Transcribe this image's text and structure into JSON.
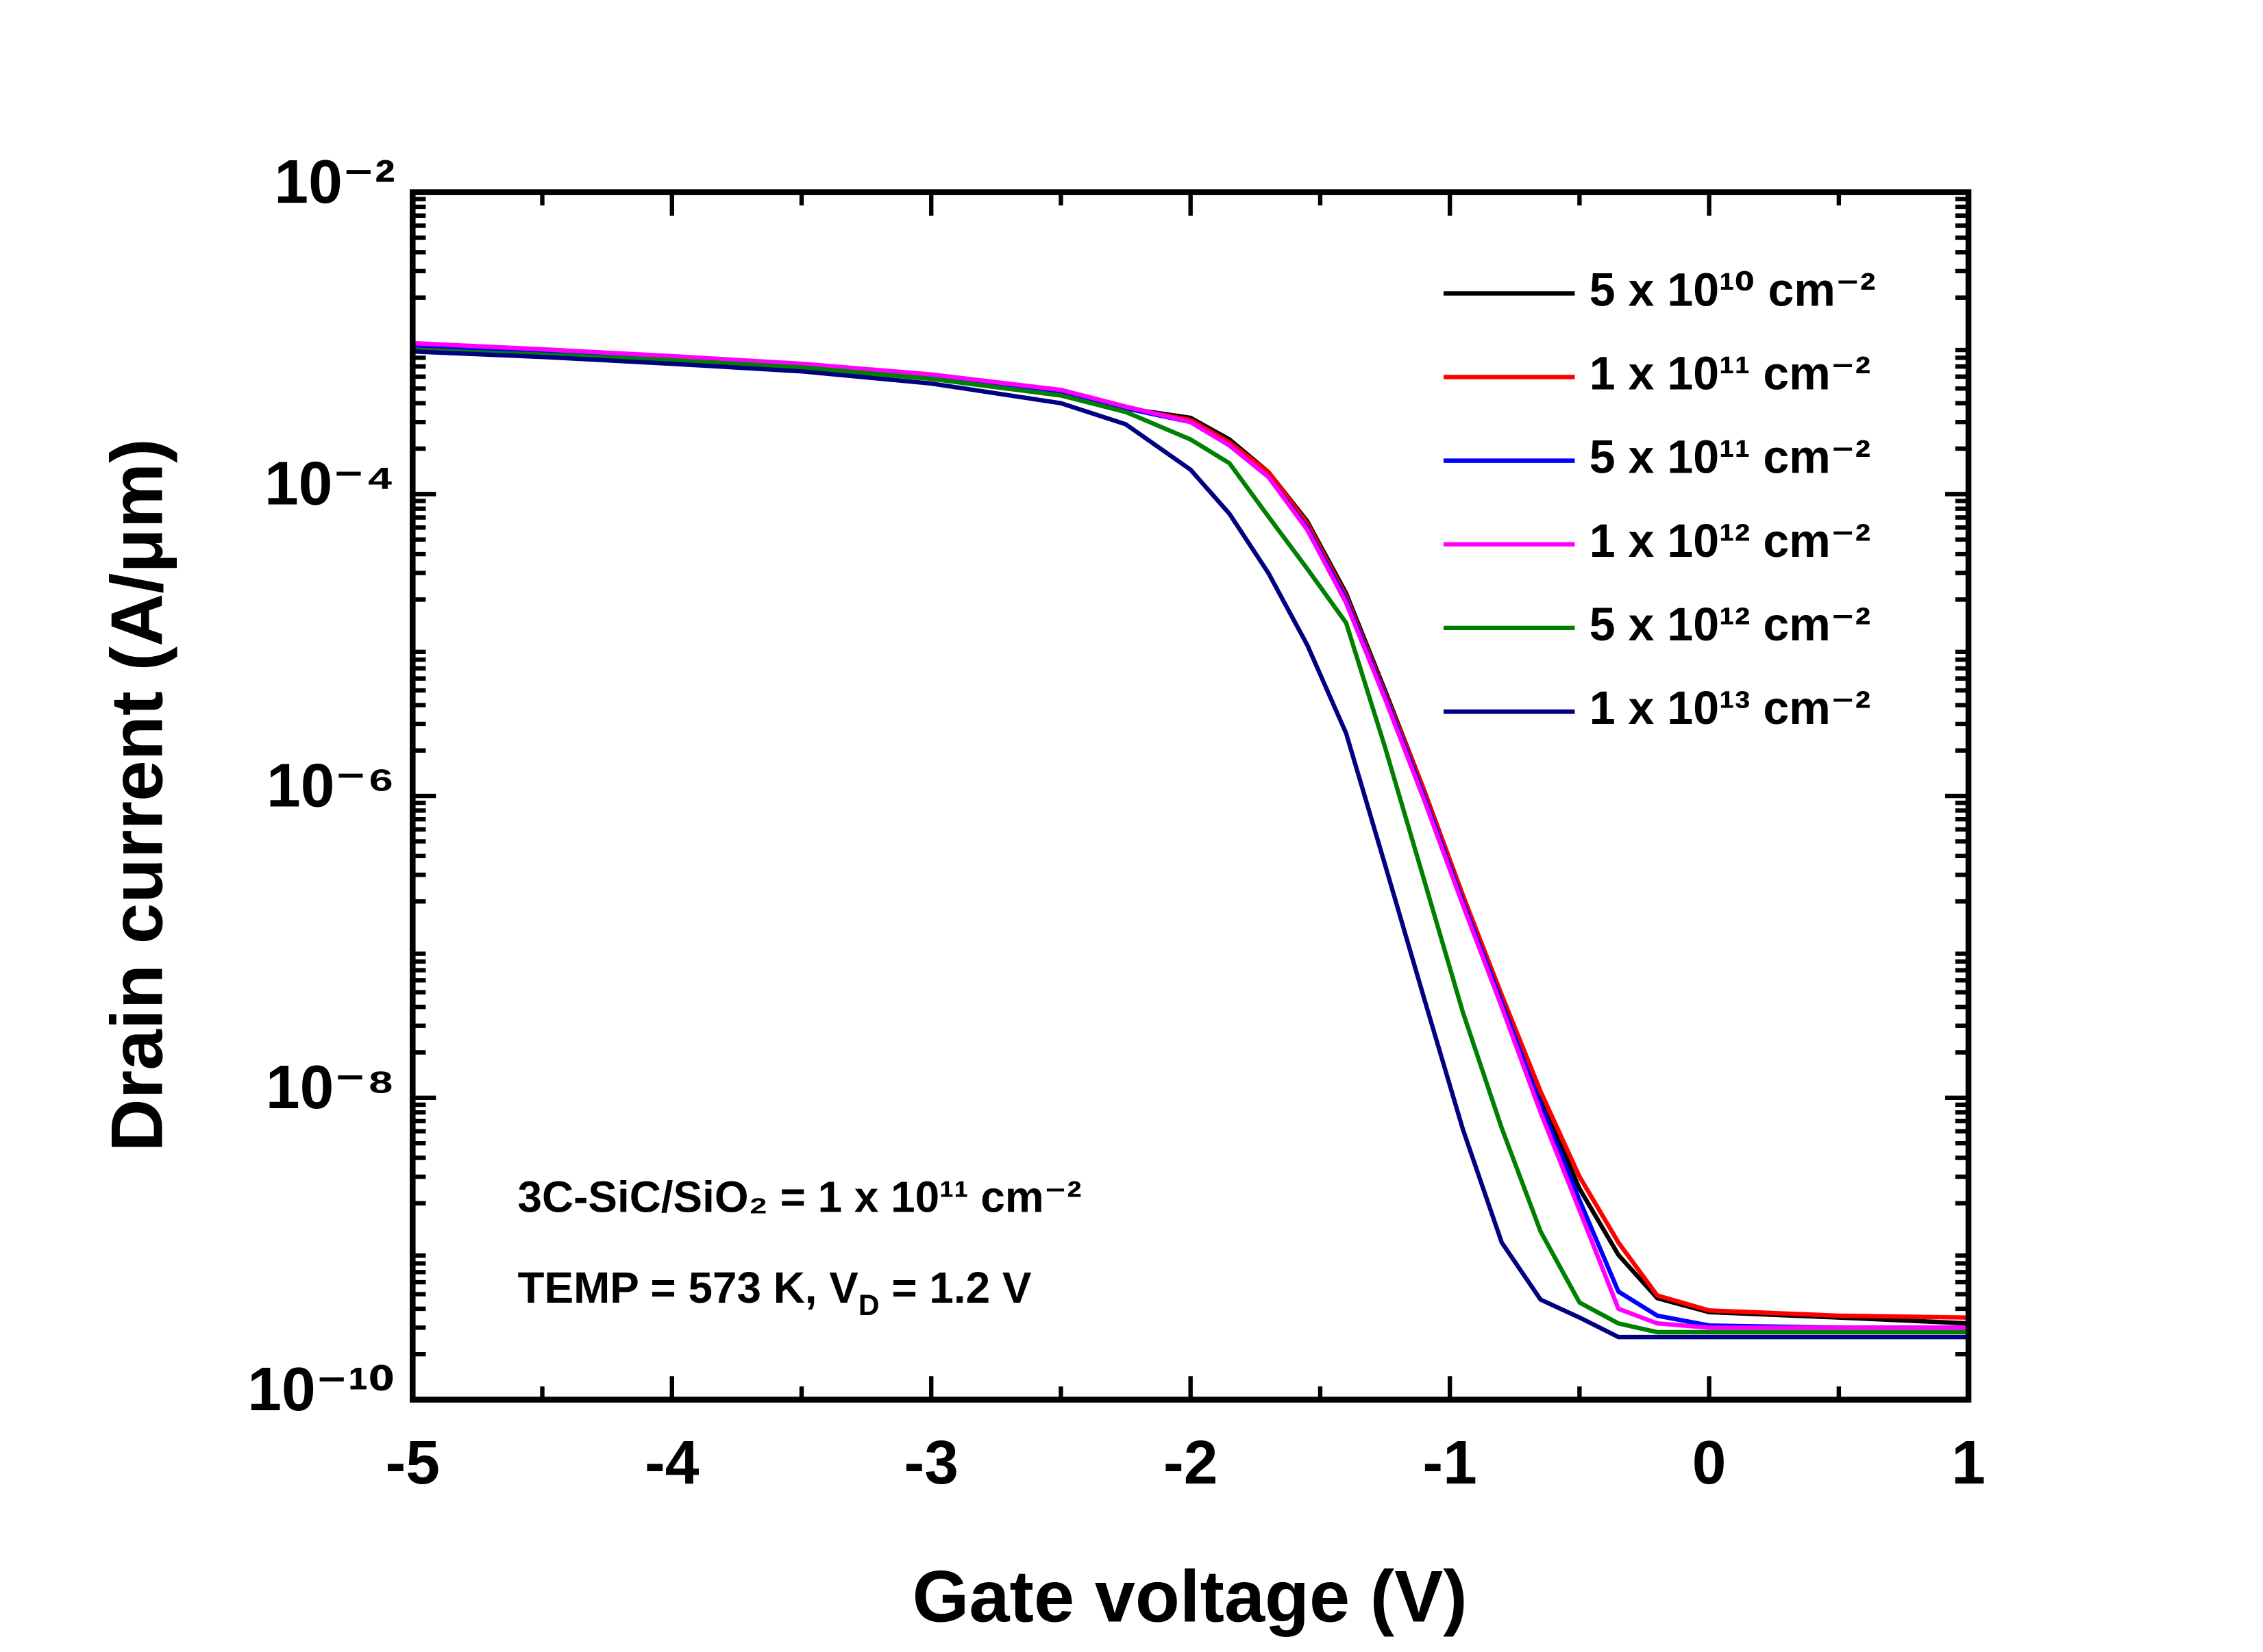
{
  "chart_data": {
    "type": "line",
    "x_label": "Gate voltage (V)",
    "y_label": "Drain current (A/μm)",
    "x": [
      -5,
      -4.5,
      -4,
      -3.5,
      -3,
      -2.5,
      -2.25,
      -2,
      -1.85,
      -1.7,
      -1.55,
      -1.4,
      -1.25,
      -1.1,
      -0.95,
      -0.8,
      -0.65,
      -0.5,
      -0.35,
      -0.2,
      0,
      0.5,
      1
    ],
    "xlim": [
      -5,
      1
    ],
    "xticks": [
      -5,
      -4,
      -3,
      -2,
      -1,
      0,
      1
    ],
    "ylim": [
      1e-10,
      0.01
    ],
    "log_y": true,
    "yticks": [
      {
        "value": 1e-10,
        "label": "10⁻¹⁰"
      },
      {
        "value": 1e-08,
        "label": "10⁻⁸"
      },
      {
        "value": 1e-06,
        "label": "10⁻⁶"
      },
      {
        "value": 0.0001,
        "label": "10⁻⁴"
      },
      {
        "value": 0.01,
        "label": "10⁻²"
      }
    ],
    "legend": "upper right",
    "series": [
      {
        "name": "5 x 10¹⁰ cm⁻²",
        "color": "#000000",
        "values": [
          0.00095,
          0.00087,
          0.00079,
          0.00071,
          0.0006,
          0.00047,
          0.00037,
          0.00032,
          0.00023,
          0.00014,
          6.6e-05,
          2.2e-05,
          5e-06,
          1.1e-06,
          2.2e-07,
          4.7e-08,
          1e-08,
          2.5e-09,
          9.1e-10,
          4.7e-10,
          3.8e-10,
          3.5e-10,
          3.2e-10
        ]
      },
      {
        "name": "1 x 10¹¹ cm⁻²",
        "color": "#ff0000",
        "values": [
          0.00096,
          0.00088,
          0.0008,
          0.00072,
          0.00061,
          0.00048,
          0.00037,
          0.00031,
          0.00022,
          0.00014,
          6.4e-05,
          2.1e-05,
          4.8e-06,
          1.1e-06,
          2.2e-07,
          4.8e-08,
          1.1e-08,
          3e-09,
          1.1e-09,
          4.9e-10,
          3.9e-10,
          3.6e-10,
          3.5e-10
        ]
      },
      {
        "name": "5 x 10¹¹ cm⁻²",
        "color": "#0000ff",
        "values": [
          0.00097,
          0.00089,
          0.00081,
          0.00072,
          0.00061,
          0.00048,
          0.00037,
          0.0003,
          0.00021,
          0.00013,
          6e-05,
          2e-05,
          4.6e-06,
          1e-06,
          2e-07,
          4.3e-08,
          9e-09,
          2.1e-09,
          5.2e-10,
          3.6e-10,
          3.1e-10,
          3e-10,
          3e-10
        ]
      },
      {
        "name": "1 x 10¹² cm⁻²",
        "color": "#ff00ff",
        "values": [
          0.001,
          0.00091,
          0.00082,
          0.00073,
          0.00062,
          0.00049,
          0.00038,
          0.0003,
          0.00021,
          0.00013,
          5.8e-05,
          1.9e-05,
          4.4e-06,
          9.5e-07,
          1.9e-07,
          4e-08,
          8e-09,
          1.8e-09,
          4e-10,
          3.2e-10,
          3e-10,
          3e-10,
          3e-10
        ]
      },
      {
        "name": "5 x 10¹² cm⁻²",
        "color": "#008000",
        "values": [
          0.0009,
          0.00084,
          0.00077,
          0.00069,
          0.00058,
          0.00045,
          0.00035,
          0.00023,
          0.00016,
          7.1e-05,
          3.2e-05,
          1.4e-05,
          2.1e-06,
          2.8e-07,
          3.7e-08,
          6.3e-09,
          1.3e-09,
          4.4e-10,
          3.2e-10,
          2.8e-10,
          2.8e-10,
          2.8e-10,
          2.8e-10
        ]
      },
      {
        "name": "1 x 10¹³ cm⁻²",
        "color": "#000080",
        "values": [
          0.00088,
          0.00081,
          0.00073,
          0.00065,
          0.00054,
          0.0004,
          0.00029,
          0.000145,
          7.4e-05,
          3e-05,
          1e-05,
          2.6e-06,
          3.5e-07,
          4.6e-08,
          6.2e-09,
          1.1e-09,
          4.6e-10,
          3.5e-10,
          2.6e-10,
          2.6e-10,
          2.6e-10,
          2.6e-10,
          2.6e-10
        ]
      }
    ],
    "annotations": [
      {
        "parts": [
          {
            "text": "3C-SiC/SiO₂ = 1 x 10¹¹ cm⁻²"
          }
        ]
      },
      {
        "parts": [
          {
            "text": "TEMP = 573 K, V"
          },
          {
            "text": "D",
            "sub": true
          },
          {
            "text": " = 1.2 V"
          }
        ]
      }
    ]
  }
}
